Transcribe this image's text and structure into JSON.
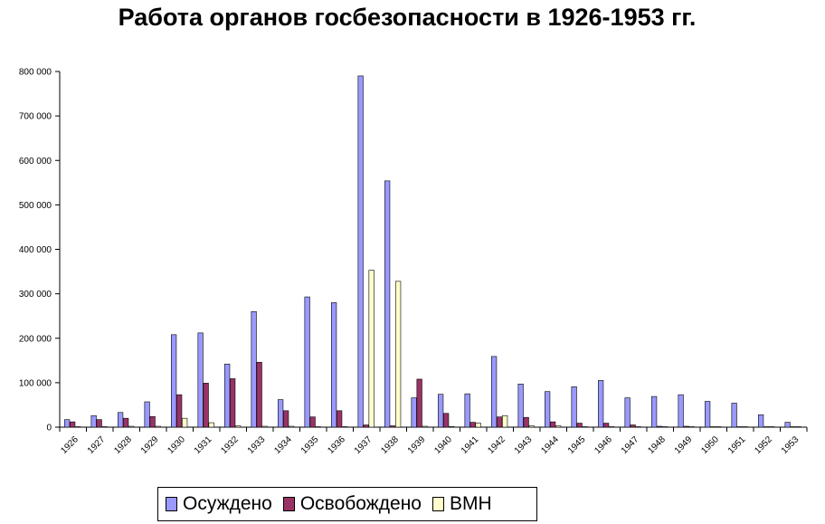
{
  "chart_data": {
    "type": "bar",
    "title": "Работа органов госбезопасности в 1926-1953 гг.",
    "categories": [
      "1926",
      "1927",
      "1928",
      "1929",
      "1930",
      "1931",
      "1932",
      "1933",
      "1934",
      "1935",
      "1936",
      "1937",
      "1938",
      "1939",
      "1940",
      "1941",
      "1942",
      "1943",
      "1944",
      "1945",
      "1946",
      "1947",
      "1948",
      "1949",
      "1950",
      "1951",
      "1952",
      "1953"
    ],
    "y_ticks": [
      "0",
      "100 000",
      "200 000",
      "300 000",
      "400 000",
      "500 000",
      "600 000",
      "700 000",
      "800 000"
    ],
    "ylim": [
      0,
      800000
    ],
    "grid": false,
    "legend_position": "bottom",
    "series": [
      {
        "name": "Осуждено",
        "color": "#9999ff",
        "values": [
          17000,
          26000,
          33000,
          57000,
          208000,
          212000,
          142000,
          260000,
          62000,
          293000,
          280000,
          790000,
          554000,
          66000,
          74000,
          75000,
          159000,
          97000,
          80000,
          91000,
          105000,
          66000,
          69000,
          73000,
          58000,
          54000,
          28000,
          11000
        ]
      },
      {
        "name": "Освобождено",
        "color": "#993366",
        "values": [
          12000,
          17000,
          20000,
          24000,
          73000,
          99000,
          109000,
          146000,
          37000,
          23000,
          37000,
          5000,
          3000,
          108000,
          31000,
          11000,
          23000,
          22000,
          12000,
          9000,
          9000,
          5000,
          2000,
          2000,
          1000,
          1000,
          1000,
          1000
        ]
      },
      {
        "name": "ВМН",
        "color": "#ffffcc",
        "values": [
          1000,
          1000,
          2000,
          2000,
          20000,
          10000,
          3000,
          2000,
          2000,
          1000,
          1000,
          353000,
          328000,
          2000,
          1500,
          9000,
          26000,
          3000,
          3000,
          1000,
          1000,
          500,
          500,
          500,
          500,
          500,
          500,
          200
        ]
      }
    ]
  }
}
